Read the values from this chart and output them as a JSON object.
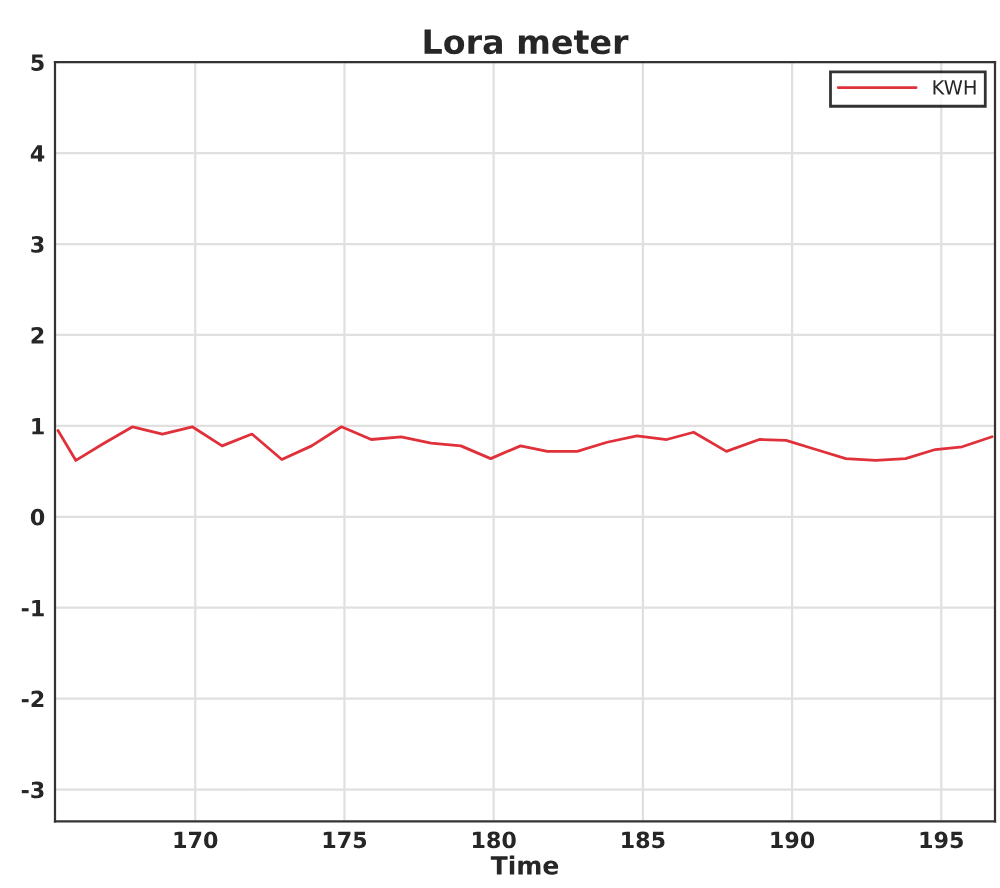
{
  "chart_data": {
    "type": "line",
    "title": "Lora meter",
    "xlabel": "Time",
    "x": [
      165.4,
      166,
      166.9,
      167.9,
      168.9,
      169.9,
      170.9,
      171.9,
      172.9,
      173.9,
      174.9,
      175.9,
      176.9,
      177.9,
      178.9,
      179.9,
      180.9,
      181.8,
      182.8,
      183.8,
      184.8,
      185.8,
      186.7,
      187.8,
      188.9,
      189.8,
      190.8,
      191.8,
      192.8,
      193.8,
      194.8,
      195.7,
      196.7
    ],
    "series": [
      {
        "name": "KWH",
        "color": "#e0303a",
        "values": [
          0.95,
          0.62,
          0.8,
          0.99,
          0.91,
          0.99,
          0.78,
          0.91,
          0.63,
          0.78,
          0.99,
          0.85,
          0.88,
          0.81,
          0.78,
          0.64,
          0.78,
          0.72,
          0.72,
          0.82,
          0.89,
          0.85,
          0.93,
          0.72,
          0.85,
          0.84,
          0.74,
          0.64,
          0.62,
          0.64,
          0.74,
          0.77,
          0.88
        ]
      }
    ],
    "xlim": [
      165.3,
      196.8
    ],
    "xticks": [
      170,
      175,
      180,
      185,
      190,
      195
    ],
    "ylim": [
      -3.35,
      5
    ],
    "yticks": [
      -3,
      -2,
      -1,
      0,
      1,
      2,
      3,
      4,
      5
    ],
    "grid": true,
    "legend": "top right",
    "marker": "none",
    "line_style": "solid"
  }
}
